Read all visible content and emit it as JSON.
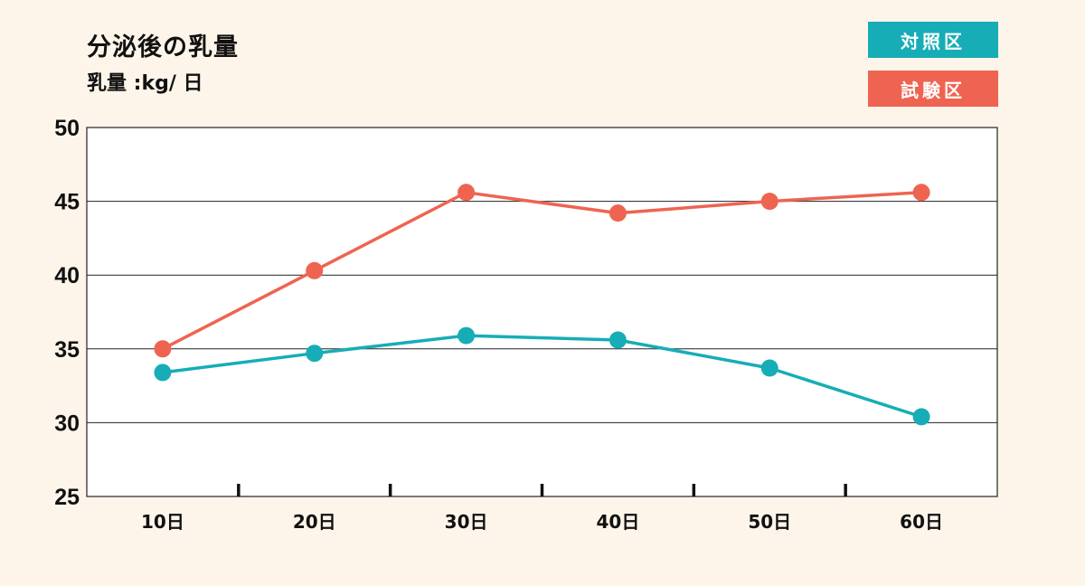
{
  "title": "分泌後の乳量",
  "unit_label": "乳量 :kg/ 日",
  "colors": {
    "control": "#17adb6",
    "test": "#ee6451",
    "background": "#fdf5ea",
    "grid": "#222222"
  },
  "chart_data": {
    "type": "line",
    "title": "分泌後の乳量",
    "ylabel": "乳量 :kg/ 日",
    "xlabel": "",
    "categories": [
      "10日",
      "20日",
      "30日",
      "40日",
      "50日",
      "60日"
    ],
    "ylim": [
      25,
      50
    ],
    "yticks": [
      25,
      30,
      35,
      40,
      45,
      50
    ],
    "grid": true,
    "legend_position": "top-right",
    "series": [
      {
        "name": "対照区",
        "color": "#17adb6",
        "values": [
          33.4,
          34.7,
          35.9,
          35.6,
          33.7,
          30.4
        ]
      },
      {
        "name": "試験区",
        "color": "#ee6451",
        "values": [
          35.0,
          40.3,
          45.6,
          44.2,
          45.0,
          45.6
        ]
      }
    ]
  }
}
